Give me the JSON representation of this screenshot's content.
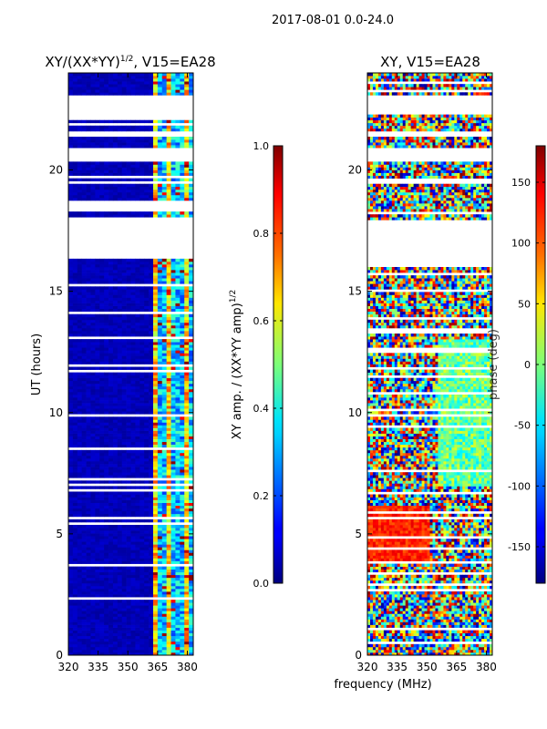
{
  "suptitle": "2017-08-01 0.0-24.0",
  "xlabel_shared": "frequency (MHz)",
  "colors": {
    "axis": "#000000",
    "gap": "#ffffff",
    "low": "#00007f",
    "high": "#7f0000"
  },
  "chart_data": [
    {
      "type": "heatmap",
      "title_main": "XY/(XX*YY)",
      "title_sup": "1/2",
      "title_tail": ", V15=EA28",
      "xlabel": "",
      "ylabel": "UT (hours)",
      "x_ticks": [
        "320",
        "335",
        "350",
        "365",
        "380"
      ],
      "x_tick_values": [
        320,
        335,
        350,
        365,
        380
      ],
      "xlim": [
        320,
        383
      ],
      "y_ticks": [
        "0",
        "5",
        "10",
        "15",
        "20"
      ],
      "y_tick_values": [
        0,
        5,
        10,
        15,
        20
      ],
      "ylim": [
        0,
        24
      ],
      "colorbar": {
        "label_main": "XY amp. / (XX*YY amp)",
        "label_sup": "1/2",
        "ticks": [
          "0.0",
          "0.2",
          "0.4",
          "0.6",
          "0.8",
          "1.0"
        ],
        "tick_values": [
          0.0,
          0.2,
          0.4,
          0.6,
          0.8,
          1.0
        ],
        "range": [
          0.0,
          1.0
        ]
      },
      "gaps_hours": [
        [
          22.3,
          23.1
        ],
        [
          20.3,
          20.9
        ],
        [
          16.4,
          18.0
        ],
        [
          21.4,
          21.55
        ],
        [
          19.4,
          19.6
        ]
      ],
      "pattern": "normalized XY amplitude: low (dark blue) below ~362 MHz, elevated (0.3-0.8) in channels 362-383 MHz"
    },
    {
      "type": "heatmap",
      "title_main": "XY, V15=EA28",
      "title_sup": "",
      "title_tail": "",
      "xlabel": "",
      "ylabel": "",
      "x_ticks": [
        "320",
        "335",
        "350",
        "365",
        "380"
      ],
      "x_tick_values": [
        320,
        335,
        350,
        365,
        380
      ],
      "xlim": [
        320,
        383
      ],
      "y_ticks": [
        "0",
        "5",
        "10",
        "15",
        "20"
      ],
      "y_tick_values": [
        0,
        5,
        10,
        15,
        20
      ],
      "ylim": [
        0,
        24
      ],
      "colorbar": {
        "label_main": "phase (deg)",
        "label_sup": "",
        "ticks": [
          "-150",
          "-100",
          "-50",
          "0",
          "50",
          "100",
          "150"
        ],
        "tick_values": [
          -150,
          -100,
          -50,
          0,
          50,
          100,
          150
        ],
        "range": [
          -180,
          180
        ]
      },
      "gaps_hours": [
        [
          22.3,
          23.1
        ],
        [
          20.3,
          20.9
        ],
        [
          16.4,
          18.0
        ],
        [
          21.4,
          21.55
        ],
        [
          19.4,
          19.6
        ]
      ],
      "pattern": "XY phase: noisy full-range phases; coherent ~+120 deg band at 320-350 MHz for 4-6 h"
    }
  ]
}
